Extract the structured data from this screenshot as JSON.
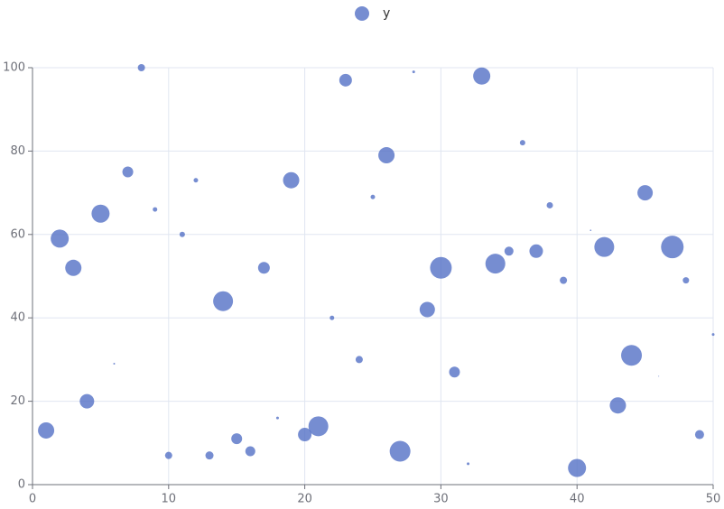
{
  "chart_data": {
    "type": "scatter",
    "x": [
      1,
      2,
      3,
      4,
      5,
      6,
      7,
      8,
      9,
      10,
      11,
      12,
      13,
      14,
      15,
      16,
      17,
      18,
      19,
      20,
      21,
      22,
      23,
      24,
      25,
      26,
      27,
      28,
      29,
      30,
      31,
      32,
      33,
      34,
      35,
      36,
      37,
      38,
      39,
      40,
      41,
      42,
      43,
      44,
      45,
      46,
      47,
      48,
      49,
      50
    ],
    "series": [
      {
        "name": "y",
        "color": "#5470c6",
        "values": [
          13,
          59,
          52,
          20,
          65,
          29,
          75,
          100,
          66,
          7,
          60,
          73,
          7,
          44,
          11,
          8,
          52,
          16,
          73,
          12,
          14,
          40,
          97,
          30,
          69,
          79,
          8,
          99,
          42,
          52,
          27,
          5,
          98,
          53,
          56,
          82,
          56,
          67,
          49,
          4,
          61,
          57,
          19,
          31,
          70,
          26,
          57,
          49,
          12,
          36
        ],
        "sizes": [
          18,
          20,
          18,
          16,
          20,
          2,
          12,
          8,
          5,
          8,
          6,
          5,
          9,
          22,
          12,
          11,
          13,
          3,
          18,
          15,
          22,
          5,
          14,
          8,
          5,
          18,
          23,
          3,
          17,
          24,
          12,
          3,
          19,
          22,
          10,
          6,
          15,
          7,
          8,
          20,
          1.6,
          22,
          18,
          23,
          17,
          1,
          25,
          7,
          10,
          3
        ]
      }
    ],
    "xlim": [
      0,
      50
    ],
    "xticks": [
      0,
      10,
      20,
      30,
      40,
      50
    ],
    "ylim": [
      0,
      100
    ],
    "yticks": [
      0,
      20,
      40,
      60,
      80,
      100
    ],
    "grid": true,
    "legend": "top"
  }
}
